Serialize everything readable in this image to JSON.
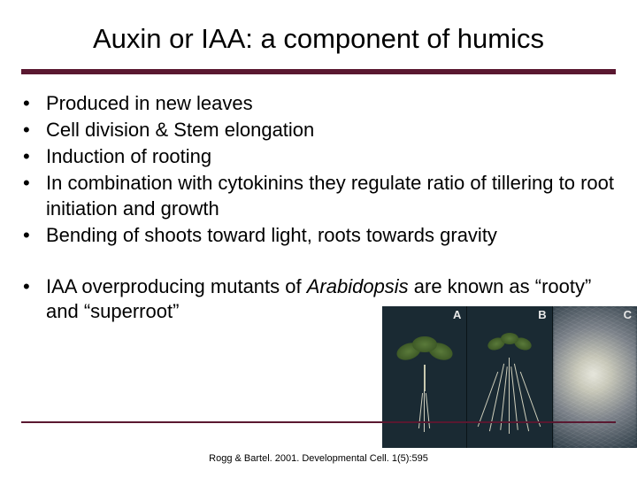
{
  "title": "Auxin or IAA: a component of humics",
  "colors": {
    "rule": "#5a1830",
    "text": "#000000",
    "background": "#ffffff"
  },
  "bullets_group1": [
    "Produced in new leaves",
    "Cell division & Stem elongation",
    "Induction of rooting",
    "In combination with cytokinins they regulate ratio of tillering to root initiation and growth",
    "Bending of shoots toward light, roots towards gravity"
  ],
  "bullets_group2_prefix": "IAA overproducing mutants of ",
  "bullets_group2_italic": "Arabidopsis",
  "bullets_group2_suffix": " are known as “rooty” and “superroot”",
  "citation": "Rogg & Bartel. 2001. Developmental Cell. 1(5):595",
  "photos": {
    "labels": [
      "A",
      "B",
      "C"
    ]
  }
}
